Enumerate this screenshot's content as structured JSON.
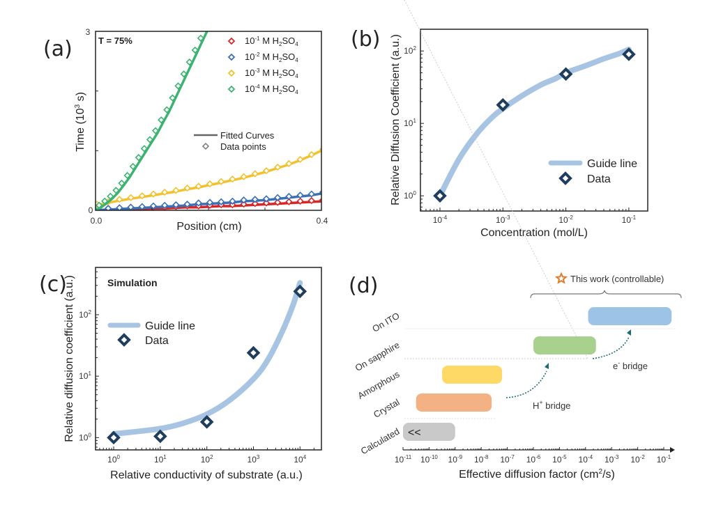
{
  "chart_data": [
    {
      "id": "a",
      "panel_label": "(a)",
      "type": "line",
      "annotation": "T = 75%",
      "xlabel": "Position (cm)",
      "ylabel_main": "Time (10",
      "ylabel_sup": "3",
      "ylabel_tail": " s)",
      "xlim": [
        0.0,
        0.4
      ],
      "ylim": [
        0,
        3
      ],
      "x_tick_labels": [
        "0.0",
        "0.4"
      ],
      "y_tick_labels": [
        "0",
        "3"
      ],
      "y_ticks": [
        0,
        1,
        2,
        3
      ],
      "x_ticks": [
        0,
        0.1,
        0.2,
        0.3,
        0.4
      ],
      "legend_series_position": "top-right",
      "legend_style_entries": [
        {
          "label": "Fitted Curves",
          "marker": "line"
        },
        {
          "label": "Data points",
          "marker": "open-diamond"
        }
      ],
      "series": [
        {
          "name": "10^-1 M H2SO4",
          "exp": "-1",
          "color": "#d62728",
          "x": [
            0.0,
            0.02,
            0.04,
            0.06,
            0.08,
            0.1,
            0.12,
            0.14,
            0.16,
            0.18,
            0.2,
            0.22,
            0.24,
            0.26,
            0.28,
            0.3,
            0.32,
            0.34,
            0.36,
            0.38,
            0.4
          ],
          "y": [
            0.0,
            0.01,
            0.01,
            0.02,
            0.02,
            0.03,
            0.03,
            0.04,
            0.05,
            0.05,
            0.06,
            0.07,
            0.07,
            0.08,
            0.09,
            0.1,
            0.11,
            0.12,
            0.13,
            0.14,
            0.15
          ]
        },
        {
          "name": "10^-2 M H2SO4",
          "exp": "-2",
          "color": "#3b6fb6",
          "x": [
            0.0,
            0.02,
            0.04,
            0.06,
            0.08,
            0.1,
            0.12,
            0.14,
            0.16,
            0.18,
            0.2,
            0.22,
            0.24,
            0.26,
            0.28,
            0.3,
            0.32,
            0.34,
            0.36,
            0.38,
            0.4
          ],
          "y": [
            0.0,
            0.01,
            0.02,
            0.03,
            0.04,
            0.05,
            0.06,
            0.07,
            0.08,
            0.1,
            0.11,
            0.12,
            0.13,
            0.15,
            0.16,
            0.17,
            0.19,
            0.21,
            0.23,
            0.25,
            0.28
          ]
        },
        {
          "name": "10^-3 M H2SO4",
          "exp": "-3",
          "color": "#f2c12e",
          "x": [
            0.0,
            0.02,
            0.04,
            0.06,
            0.08,
            0.1,
            0.12,
            0.14,
            0.16,
            0.18,
            0.2,
            0.22,
            0.24,
            0.26,
            0.28,
            0.3,
            0.32,
            0.34,
            0.36,
            0.38,
            0.4
          ],
          "y": [
            0.08,
            0.12,
            0.16,
            0.19,
            0.22,
            0.25,
            0.28,
            0.31,
            0.35,
            0.38,
            0.42,
            0.46,
            0.5,
            0.54,
            0.59,
            0.64,
            0.7,
            0.76,
            0.83,
            0.91,
            1.0
          ]
        },
        {
          "name": "10^-4 M H2SO4",
          "exp": "-4",
          "color": "#3cb371",
          "x": [
            0.0,
            0.01,
            0.02,
            0.03,
            0.04,
            0.05,
            0.06,
            0.07,
            0.08,
            0.09,
            0.1,
            0.11,
            0.12,
            0.13,
            0.14,
            0.15,
            0.16,
            0.17,
            0.18,
            0.19,
            0.2
          ],
          "y": [
            0.0,
            0.05,
            0.12,
            0.2,
            0.3,
            0.42,
            0.55,
            0.7,
            0.85,
            1.0,
            1.15,
            1.3,
            1.48,
            1.65,
            1.85,
            2.05,
            2.25,
            2.45,
            2.65,
            2.85,
            3.05
          ]
        }
      ]
    },
    {
      "id": "b",
      "panel_label": "(b)",
      "type": "scatter",
      "xscale": "log",
      "yscale": "log",
      "xlabel": "Concentration (mol/L)",
      "ylabel": "Relative Diffusion Coefficient (a.u.)",
      "xlim_log10": [
        -4.31,
        -0.7
      ],
      "ylim_log10": [
        -0.21,
        2.3
      ],
      "x_ticks_exp": [
        "-4",
        "-3",
        "-2",
        "-1"
      ],
      "y_ticks_exp": [
        "0",
        "1",
        "2"
      ],
      "legend": [
        "Guide line",
        "Data"
      ],
      "legend_position": "bottom-right",
      "guide_color": "#a7c4e2",
      "marker_color": "#1f3d5c",
      "data_x": [
        0.0001,
        0.001,
        0.01,
        0.1
      ],
      "data_y": [
        1.0,
        18,
        48,
        90
      ],
      "guide_x": [
        0.0001,
        0.0002,
        0.0004,
        0.0007,
        0.001,
        0.002,
        0.004,
        0.007,
        0.01,
        0.02,
        0.04,
        0.07,
        0.1
      ],
      "guide_y": [
        1.0,
        3.2,
        7.5,
        12.5,
        16,
        24,
        34,
        42,
        50,
        62,
        78,
        92,
        105
      ]
    },
    {
      "id": "c",
      "panel_label": "(c)",
      "type": "scatter",
      "xscale": "log",
      "yscale": "log",
      "annotation": "Simulation",
      "xlabel": "Relative conductivity of substrate (a.u.)",
      "ylabel": "Relative diffusion coefficient (a.u.)",
      "xlim_log10": [
        -0.39,
        4.46
      ],
      "ylim_log10": [
        -0.2,
        2.77
      ],
      "x_ticks_exp": [
        "0",
        "1",
        "2",
        "3",
        "4"
      ],
      "y_ticks_exp": [
        "0",
        "1",
        "2"
      ],
      "legend": [
        "Guide line",
        "Data"
      ],
      "legend_position": "top-left",
      "guide_color": "#a7c4e2",
      "marker_color": "#1f3d5c",
      "data_x": [
        1,
        10,
        100,
        1000,
        10000
      ],
      "data_y": [
        1.0,
        1.05,
        1.8,
        24,
        240
      ],
      "guide_x": [
        1,
        3,
        10,
        30,
        100,
        300,
        1000,
        2000,
        4000,
        7000,
        10000
      ],
      "guide_y": [
        1.15,
        1.25,
        1.4,
        1.7,
        2.4,
        4.0,
        9.0,
        18,
        50,
        140,
        330
      ]
    },
    {
      "id": "d",
      "panel_label": "(d)",
      "type": "bar",
      "orientation": "horizontal-range",
      "xscale": "log",
      "xlabel_main": "Effective diffusion factor (cm",
      "xlabel_sup": "2",
      "xlabel_tail": "/s)",
      "xlim_log10": [
        -11,
        -1
      ],
      "x_ticks_exp": [
        "-11",
        "-10",
        "-9",
        "-8",
        "-7",
        "-6",
        "-5",
        "-4",
        "-3",
        "-2",
        "-1"
      ],
      "categories": [
        "Calculated",
        "Crystal",
        "Amorphous",
        "On sapphire",
        "On ITO"
      ],
      "ranges_log10": [
        [
          -11.0,
          -9.0
        ],
        [
          -10.5,
          -7.6
        ],
        [
          -9.5,
          -7.2
        ],
        [
          -6.0,
          -3.6
        ],
        [
          -3.9,
          -0.7
        ]
      ],
      "colors": [
        "#c9c9c9",
        "#f4b183",
        "#ffd966",
        "#a9d18e",
        "#9dc3e6"
      ],
      "calculated_marker": "<<",
      "annotations": {
        "this_work": "This work (controllable)",
        "h_bridge_main": "H",
        "h_bridge_sup": "+",
        "h_bridge_tail": " bridge",
        "e_bridge_main": "e",
        "e_bridge_sup": "-",
        "e_bridge_tail": " bridge",
        "star_color": "#e07b2a",
        "arrow_color": "#1f6b73"
      }
    }
  ]
}
